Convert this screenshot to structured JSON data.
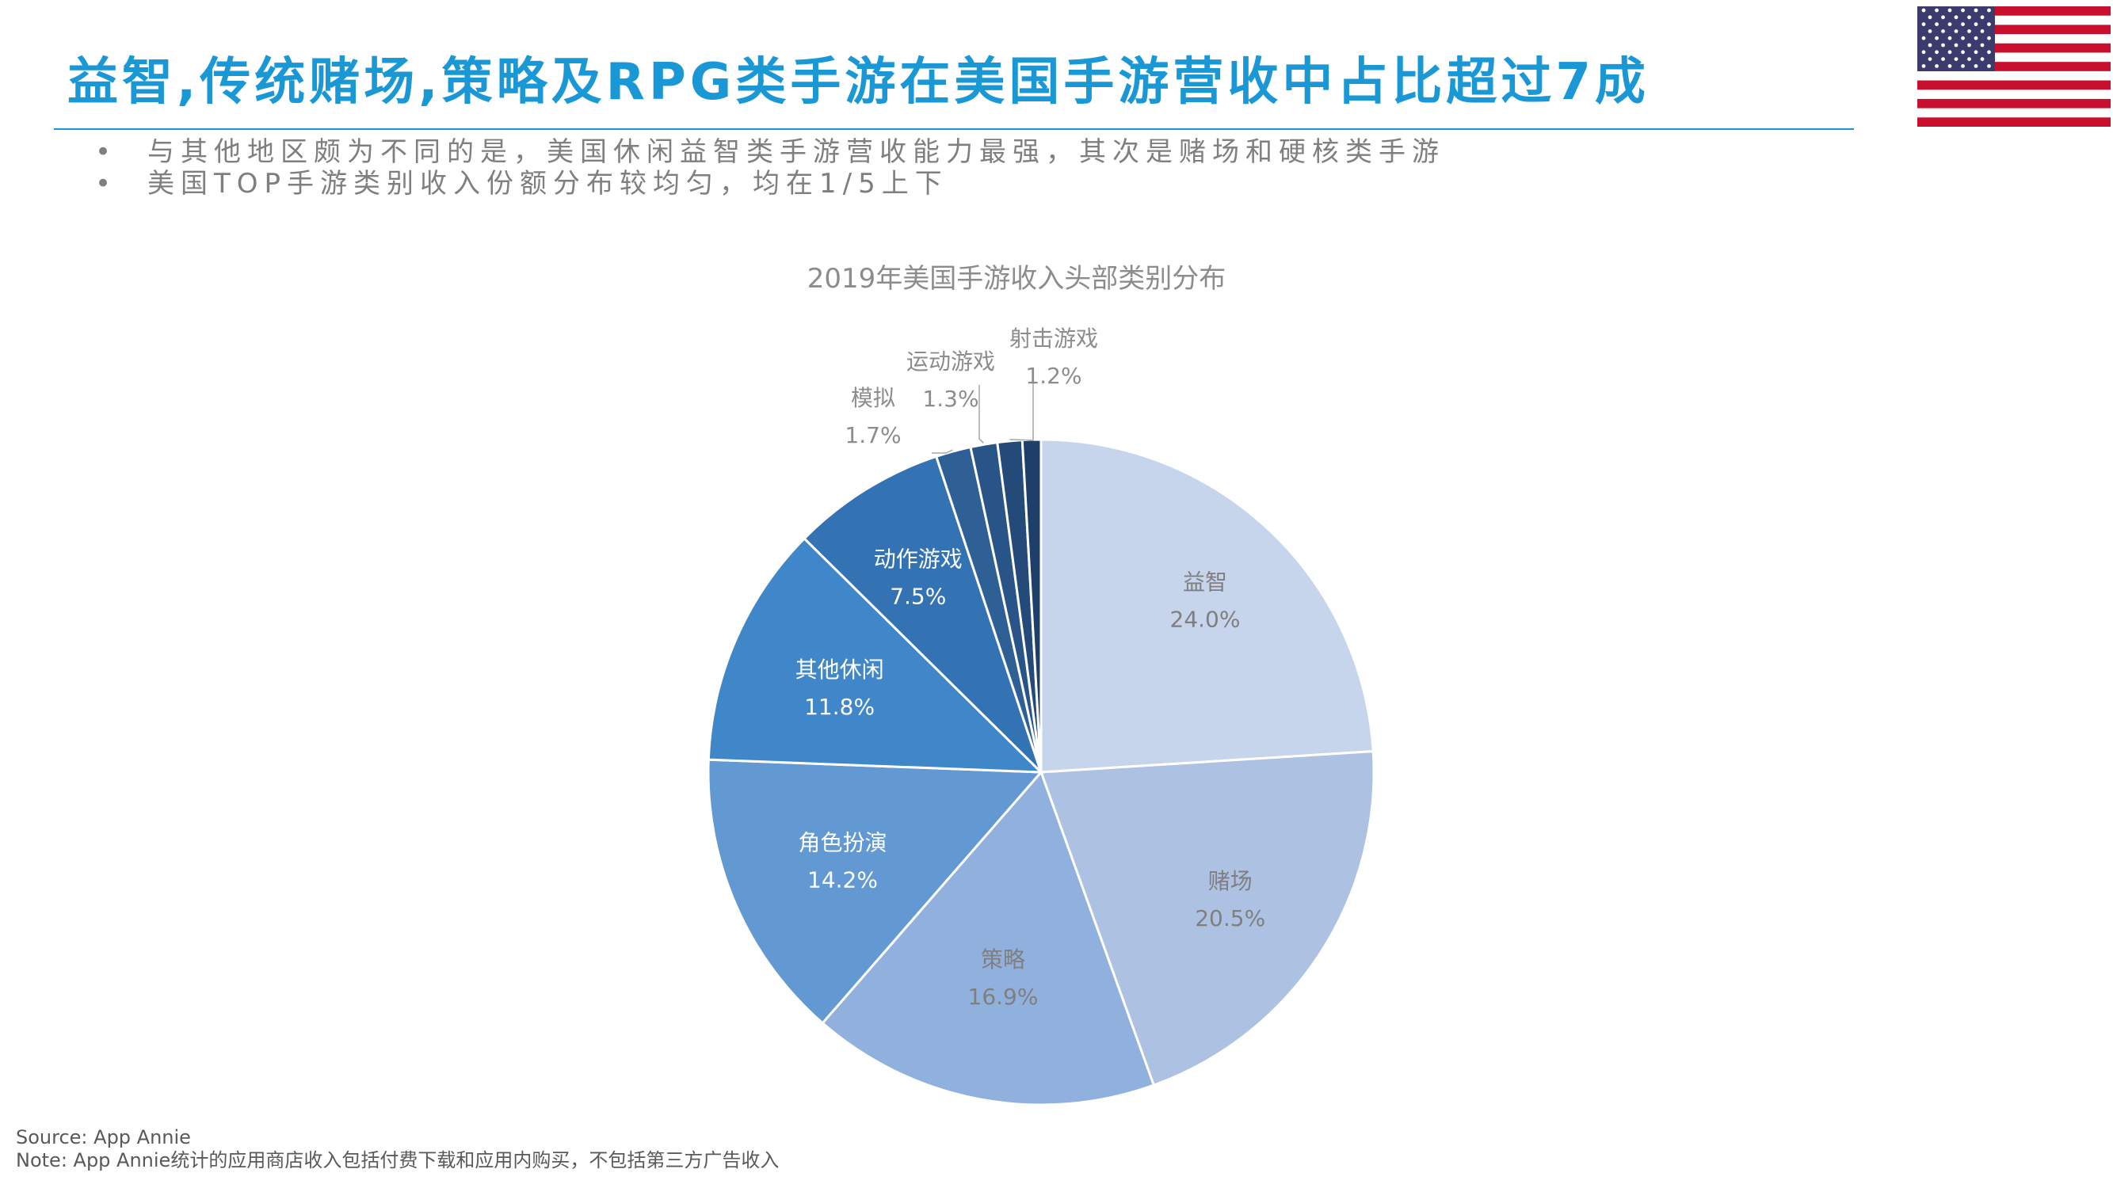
{
  "header": {
    "title": "益智,传统赌场,策略及RPG类手游在美国手游营收中占比超过7成",
    "bullets": [
      "与其他地区颇为不同的是，美国休闲益智类手游营收能力最强，其次是赌场和硬核类手游",
      "美国TOP手游类别收入份额分布较均匀，均在1/5上下"
    ]
  },
  "flag": {
    "icon": "us-flag-icon",
    "stripe_red": "#C8102E",
    "canton_blue": "#3C3B6E"
  },
  "chart_data": {
    "type": "pie",
    "title": "2019年美国手游收入头部类别分布",
    "unit": "%",
    "slices": [
      {
        "label": "益智",
        "value": 24.0,
        "display": "24.0%",
        "color": "#C6D4EC"
      },
      {
        "label": "赌场",
        "value": 20.5,
        "display": "20.5%",
        "color": "#ADC2E2"
      },
      {
        "label": "策略",
        "value": 16.9,
        "display": "16.9%",
        "color": "#90B0DE"
      },
      {
        "label": "角色扮演",
        "value": 14.2,
        "display": "14.2%",
        "color": "#6399D2"
      },
      {
        "label": "其他休闲",
        "value": 11.8,
        "display": "11.8%",
        "color": "#3F87C8"
      },
      {
        "label": "动作游戏",
        "value": 7.5,
        "display": "7.5%",
        "color": "#3373B4"
      },
      {
        "label": "模拟",
        "value": 1.7,
        "display": "1.7%",
        "color": "#2E5F95"
      },
      {
        "label": "运动游戏",
        "value": 1.3,
        "display": "1.3%",
        "color": "#295487"
      },
      {
        "label": "射击游戏",
        "value": 1.2,
        "display": "1.2%",
        "color": "#234A78"
      },
      {
        "label": "",
        "value": 0.9,
        "display": "",
        "color": "#1E3F69"
      }
    ]
  },
  "footer": {
    "source": "Source: App Annie",
    "note": "Note: App Annie统计的应用商店收入包括付费下载和应用内购买，不包括第三方广告收入"
  }
}
